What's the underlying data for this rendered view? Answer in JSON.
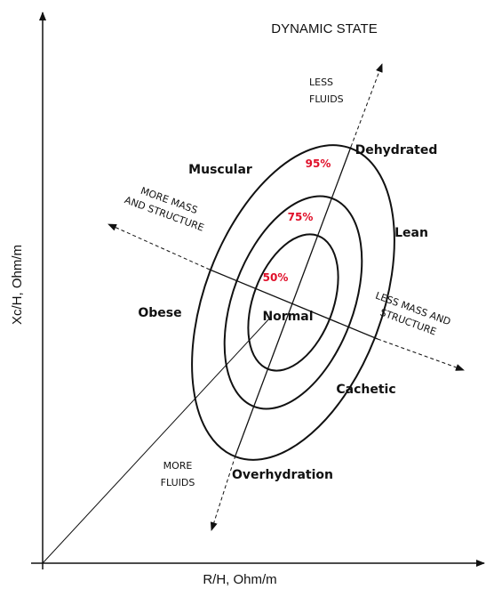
{
  "title": "DYNAMIC STATE",
  "axes": {
    "x_label": "R/H, Ohm/m",
    "y_label": "Xc/H, Ohm/m"
  },
  "ellipses": [
    {
      "label": "95%"
    },
    {
      "label": "75%"
    },
    {
      "label": "50%"
    }
  ],
  "regions": [
    {
      "label": "Muscular"
    },
    {
      "label": "Dehydrated"
    },
    {
      "label": "Lean"
    },
    {
      "label": "Obese"
    },
    {
      "label": "Normal"
    },
    {
      "label": "Cachetic"
    },
    {
      "label": "Overhydration"
    }
  ],
  "arrows": [
    {
      "lines": [
        "LESS",
        "FLUIDS"
      ]
    },
    {
      "lines": [
        "MORE MASS",
        "AND STRUCTURE"
      ]
    },
    {
      "lines": [
        "LESS MASS AND",
        "STRUCTURE"
      ]
    },
    {
      "lines": [
        "MORE",
        "FLUIDS"
      ]
    }
  ]
}
